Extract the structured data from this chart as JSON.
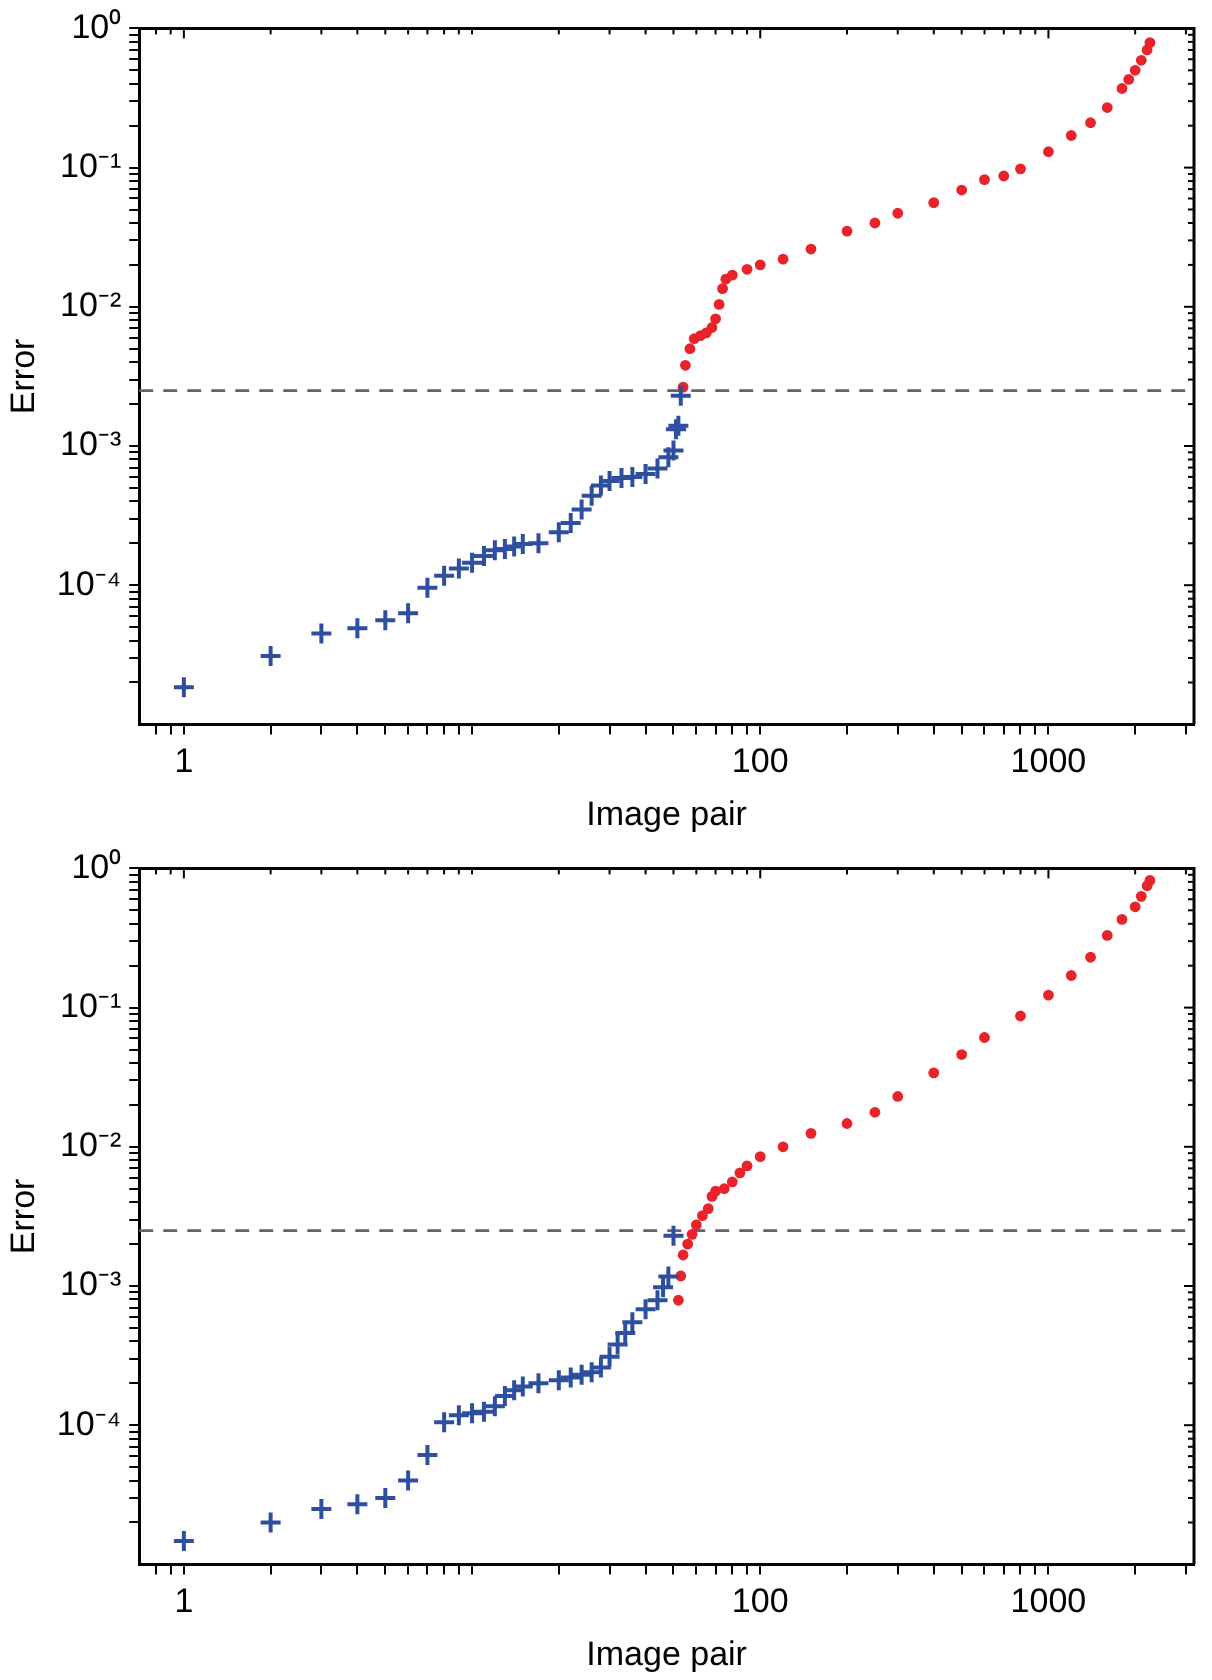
{
  "chart_data": [
    {
      "type": "scatter",
      "xlabel": "Image pair",
      "ylabel": "Error",
      "log": "xy",
      "xlim": [
        0.7,
        3200
      ],
      "ylim": [
        1e-05,
        1
      ],
      "xticks": [
        {
          "value": 0.8,
          "label": null
        },
        {
          "value": 0.9,
          "label": null
        },
        1,
        {
          "value": 2,
          "label": null
        },
        {
          "value": 3,
          "label": null
        },
        {
          "value": 4,
          "label": null
        },
        {
          "value": 5,
          "label": null
        },
        {
          "value": 6,
          "label": null
        },
        {
          "value": 7,
          "label": null
        },
        {
          "value": 8,
          "label": null
        },
        {
          "value": 9,
          "label": null
        },
        {
          "value": 10,
          "label": null
        },
        {
          "value": 20,
          "label": null
        },
        {
          "value": 30,
          "label": null
        },
        {
          "value": 40,
          "label": null
        },
        {
          "value": 50,
          "label": null
        },
        {
          "value": 60,
          "label": null
        },
        {
          "value": 70,
          "label": null
        },
        {
          "value": 80,
          "label": null
        },
        {
          "value": 90,
          "label": null
        },
        100,
        {
          "value": 200,
          "label": null
        },
        {
          "value": 300,
          "label": null
        },
        {
          "value": 400,
          "label": null
        },
        {
          "value": 500,
          "label": null
        },
        {
          "value": 600,
          "label": null
        },
        {
          "value": 700,
          "label": null
        },
        {
          "value": 800,
          "label": null
        },
        {
          "value": 900,
          "label": null
        },
        1000,
        {
          "value": 2000,
          "label": null
        },
        {
          "value": 3000,
          "label": null
        }
      ],
      "yticks": [
        {
          "value": 0.0001,
          "label": "10⁻⁴"
        },
        {
          "value": 0.001,
          "label": "10⁻³"
        },
        {
          "value": 0.01,
          "label": "10⁻²"
        },
        {
          "value": 0.1,
          "label": "10⁻¹"
        },
        {
          "value": 1,
          "label": "10⁰"
        },
        {
          "value": 2e-05,
          "label": null
        },
        {
          "value": 3e-05,
          "label": null
        },
        {
          "value": 4e-05,
          "label": null
        },
        {
          "value": 5e-05,
          "label": null
        },
        {
          "value": 6e-05,
          "label": null
        },
        {
          "value": 7e-05,
          "label": null
        },
        {
          "value": 8e-05,
          "label": null
        },
        {
          "value": 9e-05,
          "label": null
        },
        {
          "value": 0.0002,
          "label": null
        },
        {
          "value": 0.0003,
          "label": null
        },
        {
          "value": 0.0004,
          "label": null
        },
        {
          "value": 0.0005,
          "label": null
        },
        {
          "value": 0.0006,
          "label": null
        },
        {
          "value": 0.0007,
          "label": null
        },
        {
          "value": 0.0008,
          "label": null
        },
        {
          "value": 0.0009,
          "label": null
        },
        {
          "value": 0.002,
          "label": null
        },
        {
          "value": 0.003,
          "label": null
        },
        {
          "value": 0.004,
          "label": null
        },
        {
          "value": 0.005,
          "label": null
        },
        {
          "value": 0.006,
          "label": null
        },
        {
          "value": 0.007,
          "label": null
        },
        {
          "value": 0.008,
          "label": null
        },
        {
          "value": 0.009,
          "label": null
        },
        {
          "value": 0.02,
          "label": null
        },
        {
          "value": 0.03,
          "label": null
        },
        {
          "value": 0.04,
          "label": null
        },
        {
          "value": 0.05,
          "label": null
        },
        {
          "value": 0.06,
          "label": null
        },
        {
          "value": 0.07,
          "label": null
        },
        {
          "value": 0.08,
          "label": null
        },
        {
          "value": 0.09,
          "label": null
        },
        {
          "value": 0.2,
          "label": null
        },
        {
          "value": 0.3,
          "label": null
        },
        {
          "value": 0.4,
          "label": null
        },
        {
          "value": 0.5,
          "label": null
        },
        {
          "value": 0.6,
          "label": null
        },
        {
          "value": 0.7,
          "label": null
        },
        {
          "value": 0.8,
          "label": null
        },
        {
          "value": 0.9,
          "label": null
        }
      ],
      "ref_lines": [
        {
          "axis": "y",
          "value": 0.0025,
          "color": "#666666",
          "line_style": "dashed"
        }
      ],
      "series": [
        {
          "color": "#2e4fa0",
          "marker": "cross",
          "x": [
            1,
            2,
            3,
            4,
            5,
            6,
            7,
            8,
            9,
            10,
            11,
            12,
            13,
            14,
            15,
            17,
            20,
            22,
            24,
            26,
            28,
            30,
            33,
            36,
            40,
            44,
            48,
            50,
            51,
            52,
            53
          ],
          "values": [
            1.85e-05,
            3.1e-05,
            4.5e-05,
            4.9e-05,
            5.6e-05,
            6.3e-05,
            9.6e-05,
            0.000117,
            0.000132,
            0.000145,
            0.000162,
            0.000178,
            0.000182,
            0.00019,
            0.000198,
            0.0002,
            0.00024,
            0.00028,
            0.00035,
            0.00044,
            0.00052,
            0.00056,
            0.00059,
            0.0006,
            0.00063,
            0.00069,
            0.00083,
            0.00093,
            0.00132,
            0.0014,
            0.0023
          ]
        },
        {
          "color": "#e8232a",
          "marker": "circle",
          "x": [
            54,
            55,
            57,
            59,
            62,
            65,
            68,
            70,
            72,
            74,
            76,
            80,
            90,
            100,
            120,
            150,
            200,
            250,
            300,
            400,
            500,
            600,
            700,
            800,
            1000,
            1200,
            1400,
            1600,
            1800,
            1900,
            2000,
            2100,
            2200,
            2250
          ],
          "values": [
            0.00265,
            0.0038,
            0.005,
            0.0059,
            0.0062,
            0.0065,
            0.0071,
            0.0082,
            0.0104,
            0.0135,
            0.0158,
            0.0169,
            0.0186,
            0.02,
            0.022,
            0.026,
            0.035,
            0.04,
            0.047,
            0.056,
            0.069,
            0.082,
            0.087,
            0.098,
            0.13,
            0.17,
            0.21,
            0.27,
            0.37,
            0.43,
            0.5,
            0.59,
            0.7,
            0.79
          ]
        }
      ]
    },
    {
      "type": "scatter",
      "xlabel": "Image pair",
      "ylabel": "Error",
      "log": "xy",
      "xlim": [
        0.7,
        3200
      ],
      "ylim": [
        1e-05,
        1
      ],
      "xticks": [
        {
          "value": 0.8,
          "label": null
        },
        {
          "value": 0.9,
          "label": null
        },
        1,
        {
          "value": 2,
          "label": null
        },
        {
          "value": 3,
          "label": null
        },
        {
          "value": 4,
          "label": null
        },
        {
          "value": 5,
          "label": null
        },
        {
          "value": 6,
          "label": null
        },
        {
          "value": 7,
          "label": null
        },
        {
          "value": 8,
          "label": null
        },
        {
          "value": 9,
          "label": null
        },
        {
          "value": 10,
          "label": null
        },
        {
          "value": 20,
          "label": null
        },
        {
          "value": 30,
          "label": null
        },
        {
          "value": 40,
          "label": null
        },
        {
          "value": 50,
          "label": null
        },
        {
          "value": 60,
          "label": null
        },
        {
          "value": 70,
          "label": null
        },
        {
          "value": 80,
          "label": null
        },
        {
          "value": 90,
          "label": null
        },
        100,
        {
          "value": 200,
          "label": null
        },
        {
          "value": 300,
          "label": null
        },
        {
          "value": 400,
          "label": null
        },
        {
          "value": 500,
          "label": null
        },
        {
          "value": 600,
          "label": null
        },
        {
          "value": 700,
          "label": null
        },
        {
          "value": 800,
          "label": null
        },
        {
          "value": 900,
          "label": null
        },
        1000,
        {
          "value": 2000,
          "label": null
        },
        {
          "value": 3000,
          "label": null
        }
      ],
      "yticks": [
        {
          "value": 0.0001,
          "label": "10⁻⁴"
        },
        {
          "value": 0.001,
          "label": "10⁻³"
        },
        {
          "value": 0.01,
          "label": "10⁻²"
        },
        {
          "value": 0.1,
          "label": "10⁻¹"
        },
        {
          "value": 1,
          "label": "10⁰"
        },
        {
          "value": 2e-05,
          "label": null
        },
        {
          "value": 3e-05,
          "label": null
        },
        {
          "value": 4e-05,
          "label": null
        },
        {
          "value": 5e-05,
          "label": null
        },
        {
          "value": 6e-05,
          "label": null
        },
        {
          "value": 7e-05,
          "label": null
        },
        {
          "value": 8e-05,
          "label": null
        },
        {
          "value": 9e-05,
          "label": null
        },
        {
          "value": 0.0002,
          "label": null
        },
        {
          "value": 0.0003,
          "label": null
        },
        {
          "value": 0.0004,
          "label": null
        },
        {
          "value": 0.0005,
          "label": null
        },
        {
          "value": 0.0006,
          "label": null
        },
        {
          "value": 0.0007,
          "label": null
        },
        {
          "value": 0.0008,
          "label": null
        },
        {
          "value": 0.0009,
          "label": null
        },
        {
          "value": 0.002,
          "label": null
        },
        {
          "value": 0.003,
          "label": null
        },
        {
          "value": 0.004,
          "label": null
        },
        {
          "value": 0.005,
          "label": null
        },
        {
          "value": 0.006,
          "label": null
        },
        {
          "value": 0.007,
          "label": null
        },
        {
          "value": 0.008,
          "label": null
        },
        {
          "value": 0.009,
          "label": null
        },
        {
          "value": 0.02,
          "label": null
        },
        {
          "value": 0.03,
          "label": null
        },
        {
          "value": 0.04,
          "label": null
        },
        {
          "value": 0.05,
          "label": null
        },
        {
          "value": 0.06,
          "label": null
        },
        {
          "value": 0.07,
          "label": null
        },
        {
          "value": 0.08,
          "label": null
        },
        {
          "value": 0.09,
          "label": null
        },
        {
          "value": 0.2,
          "label": null
        },
        {
          "value": 0.3,
          "label": null
        },
        {
          "value": 0.4,
          "label": null
        },
        {
          "value": 0.5,
          "label": null
        },
        {
          "value": 0.6,
          "label": null
        },
        {
          "value": 0.7,
          "label": null
        },
        {
          "value": 0.8,
          "label": null
        },
        {
          "value": 0.9,
          "label": null
        }
      ],
      "ref_lines": [
        {
          "axis": "y",
          "value": 0.0025,
          "color": "#666666",
          "line_style": "dashed"
        }
      ],
      "series": [
        {
          "color": "#2e4fa0",
          "marker": "cross",
          "x": [
            1,
            2,
            3,
            4,
            5,
            6,
            7,
            8,
            9,
            10,
            11,
            12,
            13,
            14,
            15,
            17,
            20,
            22,
            24,
            26,
            28,
            30,
            32,
            34,
            36,
            40,
            44,
            46,
            48,
            50
          ],
          "values": [
            1.47e-05,
            2e-05,
            2.5e-05,
            2.7e-05,
            3e-05,
            4e-05,
            6.1e-05,
            0.000105,
            0.000118,
            0.000122,
            0.000125,
            0.000137,
            0.000162,
            0.000178,
            0.00019,
            0.0002,
            0.00021,
            0.00022,
            0.00023,
            0.00024,
            0.00026,
            0.00031,
            0.00038,
            0.00046,
            0.00055,
            0.00068,
            0.00079,
            0.00098,
            0.00117,
            0.0023
          ]
        },
        {
          "color": "#e8232a",
          "marker": "circle",
          "x": [
            52,
            53,
            54,
            56,
            58,
            60,
            63,
            66,
            68,
            70,
            75,
            80,
            85,
            90,
            100,
            120,
            150,
            200,
            250,
            300,
            400,
            500,
            600,
            800,
            1000,
            1200,
            1400,
            1600,
            1800,
            2000,
            2100,
            2200,
            2250
          ],
          "values": [
            0.00079,
            0.00118,
            0.00167,
            0.002,
            0.00235,
            0.00275,
            0.0032,
            0.0036,
            0.0044,
            0.0048,
            0.005,
            0.0056,
            0.0065,
            0.0073,
            0.0085,
            0.01,
            0.0125,
            0.0147,
            0.0177,
            0.023,
            0.034,
            0.046,
            0.061,
            0.087,
            0.123,
            0.17,
            0.23,
            0.33,
            0.43,
            0.53,
            0.63,
            0.75,
            0.82
          ]
        }
      ]
    }
  ]
}
